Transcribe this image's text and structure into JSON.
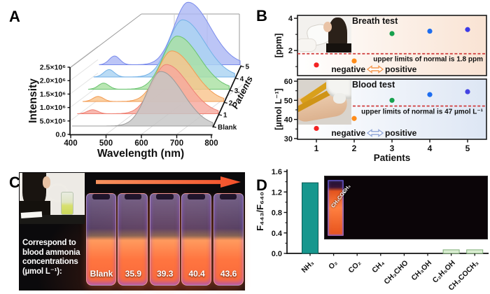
{
  "figure": {
    "panel_labels": [
      "A",
      "B",
      "C",
      "D"
    ],
    "background": "#ffffff"
  },
  "chart_data": [
    {
      "panel": "A",
      "type": "area",
      "subtype": "3d_waterfall",
      "xlabel": "Wavelength (nm)",
      "ylabel": "Intensity",
      "zlabel": "Patients",
      "xlim": [
        400,
        800
      ],
      "x_ticks": [
        "400",
        "500",
        "600",
        "700",
        "800"
      ],
      "y_ticks": [
        "0.0",
        "5.0×10⁵",
        "1.0×10⁶",
        "1.5×10⁶",
        "2.0×10⁶",
        "2.5×10⁶"
      ],
      "ylim": [
        0,
        2500000
      ],
      "z_categories": [
        "Blank",
        "1",
        "2",
        "3",
        "4",
        "5"
      ],
      "series": [
        {
          "name": "Blank",
          "fill": "#c6c6c6",
          "stroke": "#9b9b9b",
          "peak_443_nm": 0,
          "peak_652_nm": 2050000
        },
        {
          "name": "1",
          "fill": "#f6a89e",
          "stroke": "#ef8275",
          "peak_443_nm": 150000,
          "peak_652_nm": 1850000
        },
        {
          "name": "2",
          "fill": "#f9c48d",
          "stroke": "#f39c54",
          "peak_443_nm": 190000,
          "peak_652_nm": 1900000
        },
        {
          "name": "3",
          "fill": "#a9e0a2",
          "stroke": "#6ac46f",
          "peak_443_nm": 230000,
          "peak_652_nm": 2000000
        },
        {
          "name": "4",
          "fill": "#abd3f1",
          "stroke": "#72b1e7",
          "peak_443_nm": 280000,
          "peak_652_nm": 2150000
        },
        {
          "name": "5",
          "fill": "#adb8f4",
          "stroke": "#7a8bec",
          "peak_443_nm": 330000,
          "peak_652_nm": 2350000
        }
      ]
    },
    {
      "panel": "B-top",
      "type": "scatter",
      "title": "Breath test",
      "ylabel": "[ppm]",
      "x": [
        1,
        2,
        3,
        4,
        5
      ],
      "values": [
        1.1,
        1.35,
        3.05,
        3.2,
        3.3
      ],
      "point_colors": [
        "#f32222",
        "#ff8c1a",
        "#17a14e",
        "#1d6df0",
        "#3c3be8"
      ],
      "ylim": [
        0.44,
        4.18
      ],
      "y_ticks": [
        "2",
        "4"
      ],
      "y_tick_values": [
        2,
        4
      ],
      "y_minor_values": [
        1,
        3
      ],
      "threshold_value": 1.8,
      "threshold_label": "upper limits of normal is 1.8 ppm",
      "threshold_color": "#cf3a3a",
      "negative_label": "negative",
      "positive_label": "positive",
      "arrow_color": "#f59a51",
      "bg_gradient": [
        "#ffffff",
        "#f9e3d3"
      ]
    },
    {
      "panel": "B-bottom",
      "type": "scatter",
      "title": "Blood test",
      "ylabel": "[µmol L⁻¹]",
      "xlabel": "Patients",
      "x": [
        1,
        2,
        3,
        4,
        5
      ],
      "x_tick_labels": [
        "1",
        "2",
        "3",
        "4",
        "5"
      ],
      "values": [
        35.3,
        40.5,
        50,
        53,
        54.5
      ],
      "point_colors": [
        "#f32222",
        "#ff8c1a",
        "#17a14e",
        "#1d6df0",
        "#4443e2"
      ],
      "ylim": [
        29.6,
        61.1
      ],
      "y_ticks": [
        "30",
        "40",
        "50",
        "60"
      ],
      "y_tick_values": [
        30,
        40,
        50,
        60
      ],
      "y_minor_values": [
        35,
        45,
        55
      ],
      "threshold_value": 47,
      "threshold_label": "upper limits of normal is 47 µmol L⁻¹",
      "threshold_color": "#cf3a3a",
      "negative_label": "negative",
      "positive_label": "positive",
      "arrow_color": "#93a9da",
      "bg_gradient": [
        "#ffffff",
        "#dde6f4"
      ]
    },
    {
      "panel": "D",
      "type": "bar",
      "ylabel": "F₄₄₃/F₆₄₀",
      "categories": [
        "NH₃",
        "O₂",
        "CO₂",
        "CH₄",
        "CH₃CHO",
        "CH₃OH",
        "C₂H₅OH",
        "CH₃COCH₃"
      ],
      "values": [
        1.38,
        0.005,
        0.005,
        0.005,
        0.005,
        0.005,
        0.07,
        0.07
      ],
      "bar_fills": [
        "#17978e",
        "#17978e",
        "#17978e",
        "#17978e",
        "#17978e",
        "#17978e",
        "#d9edd1",
        "#d9edd1"
      ],
      "bar_strokes": [
        "#0b5b55",
        "#0b5b55",
        "#0b5b55",
        "#0b5b55",
        "#0b5b55",
        "#0b5b55",
        "#7fae78",
        "#7fae78"
      ],
      "ylim": [
        0,
        1.6
      ],
      "y_ticks": [
        "0.0",
        "0.4",
        "0.8",
        "1.2",
        "1.6"
      ]
    }
  ],
  "panelC": {
    "caption_lines": [
      "Correspond to",
      "blood ammonia",
      "concentrations",
      "(µmol L⁻¹):"
    ],
    "vial_labels": [
      "Blank",
      "35.9",
      "39.3",
      "40.4",
      "43.6"
    ]
  },
  "panelD_inset": {
    "cuvette_labels": [
      "Blank",
      "NH₃",
      "O₂",
      "CO₂",
      "CH₄",
      "CH₃CHO",
      "CH₃OH",
      "C₂H₅OH",
      "CH₃COCH₃"
    ],
    "normal_liquid_color": "#f06022",
    "nh3_liquid_color": "#bba4ea"
  }
}
